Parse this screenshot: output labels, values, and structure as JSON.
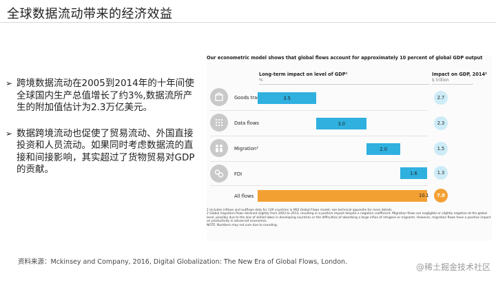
{
  "slide": {
    "title": "全球数据流动带来的经济效益",
    "bullets": [
      "跨境数据流动在2005到2014年的十年间使全球国内生产总值增长了约3%,数据流所产生的附加值估计为2.3万亿美元。",
      "数据跨境流动也促使了贸易流动、外国直接投资和人员流动。如果同时考虑数据流的直接和间接影响，其实超过了货物贸易对GDP的贡献。"
    ],
    "bullet_icon": "arrow-right-icon",
    "source": "资料来源：Mckinsey and Company, 2016, Digital Globalization: The New Era of Global Flows, London.",
    "watermark": "@稀土掘金技术社区"
  },
  "exhibit": {
    "headline": "Our econometric model shows that global flows account for approximately 10 percent of global GDP output",
    "impact_head": "Long-term impact on level of GDP¹",
    "impact_unit": "%",
    "gdp_head": "Impact on GDP, 2014²",
    "gdp_unit": "$ trillion",
    "rows": [
      {
        "label": "Goods trade",
        "icon": "goods-trade-icon"
      },
      {
        "label": "Data flows",
        "icon": "data-flows-icon"
      },
      {
        "label": "Migration³",
        "icon": "migration-icon"
      },
      {
        "label": "FDI",
        "icon": "fdi-icon"
      },
      {
        "label": "All flows",
        "icon": ""
      }
    ],
    "notes": [
      "1 Includes inflows and outflows data for 139 countries in MGI Global Flows model; see technical appendix for more details.",
      "2 Global migration flows declined slightly from 2003 to 2013, resulting in a positive impact despite a negative coefficient. Migration flows are negligible or slightly negative at the global level, possibly due to the loss of skilled labor in developing countries or the difficulties of absorbing a large influx of refugees or migrants. However, migration flows have a positive impact on productivity in advanced economies.",
      "NOTE: Numbers may not sum due to rounding."
    ],
    "colors": {
      "bar": "#2fb0df",
      "total": "#f3a033",
      "circle": "#cdecf7"
    }
  },
  "chart_data": {
    "type": "bar",
    "categories": [
      "Goods trade",
      "Data flows",
      "Migration³",
      "FDI",
      "All flows"
    ],
    "series": [
      {
        "name": "Long-term impact on level of GDP¹",
        "values": [
          3.5,
          3.0,
          2.0,
          1.6,
          10.1
        ]
      },
      {
        "name": "Impact on GDP, 2014²",
        "values": [
          2.7,
          2.3,
          1.5,
          1.3,
          7.8
        ]
      }
    ],
    "value_labels": [
      "3.5",
      "3.0",
      "2.0",
      "1.6",
      "10.1"
    ],
    "gdp_labels": [
      "2.7",
      "2.3",
      "1.5",
      "1.3",
      "7.8"
    ],
    "title": "Our econometric model shows that global flows account for approximately 10 percent of global GDP output",
    "xlabel": "",
    "ylabel": "%",
    "xlim": [
      0,
      10.1
    ],
    "style": "waterfall",
    "grid": false
  }
}
